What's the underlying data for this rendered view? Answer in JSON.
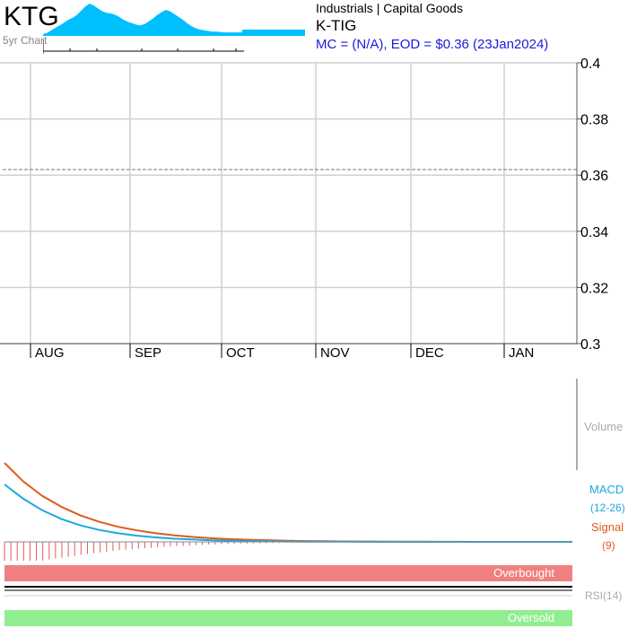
{
  "header": {
    "ticker": "KTG",
    "subchart_label": "5yr Chart",
    "sector": "Industrials | Capital Goods",
    "company_name": "K-TIG",
    "market_info": "MC = (N/A), EOD = $0.36 (23Jan2024)"
  },
  "indicators": {
    "volume_label": "Volume",
    "macd_label": "MACD",
    "macd_params": "(12-26)",
    "signal_label": "Signal",
    "signal_params": "(9)",
    "rsi_label": "RSI(14)",
    "overbought_label": "Overbought",
    "oversold_label": "Oversold"
  },
  "colors": {
    "macd": "#1aa8e0",
    "signal": "#e05a1a",
    "overbought": "#f08080",
    "oversold": "#90ee90",
    "mini_area": "#00bfff"
  },
  "chart_data": [
    {
      "type": "line",
      "name": "price",
      "y_ticks": [
        "0.4",
        "0.38",
        "0.36",
        "0.34",
        "0.32",
        "0.3"
      ],
      "ylim": [
        0.3,
        0.4
      ],
      "x_ticks": [
        "AUG",
        "SEP",
        "OCT",
        "NOV",
        "DEC",
        "JAN"
      ],
      "reference_line": 0.362,
      "grid": true
    },
    {
      "type": "area",
      "name": "5yr-mini",
      "values": [
        0.5,
        0.9,
        1.6,
        2.4,
        3.0,
        3.8,
        4.6,
        5.2,
        6.0,
        7.2,
        8.4,
        9.2,
        8.6,
        7.8,
        7.0,
        6.6,
        6.4,
        6.0,
        5.4,
        4.6,
        4.0,
        3.6,
        3.2,
        3.0,
        3.4,
        4.2,
        5.0,
        6.0,
        6.8,
        7.4,
        7.0,
        6.2,
        5.4,
        4.6,
        3.6,
        2.8,
        2.2,
        1.8,
        1.6,
        1.4,
        1.2,
        1.2,
        1.1,
        1.0,
        1.0,
        1.0,
        1.0,
        1.0
      ]
    },
    {
      "type": "line",
      "name": "macd",
      "series": [
        {
          "name": "MACD",
          "values": [
            40,
            30,
            22,
            16,
            11.5,
            8.3,
            6,
            4.3,
            3.1,
            2.2,
            1.6,
            1.1,
            0.8,
            0.55,
            0.4,
            0.28,
            0.2,
            0.14,
            0.1,
            0.07,
            0.05,
            0.03,
            0.02,
            0.01,
            0,
            0,
            0,
            0,
            0,
            0,
            0
          ]
        },
        {
          "name": "Signal",
          "values": [
            55,
            42,
            32,
            24.5,
            18.5,
            14,
            10.5,
            8,
            6,
            4.5,
            3.4,
            2.5,
            1.9,
            1.4,
            1.05,
            0.78,
            0.58,
            0.43,
            0.32,
            0.24,
            0.18,
            0.13,
            0.1,
            0.07,
            0.05,
            0.03,
            0.02,
            0.01,
            0,
            0,
            0
          ]
        }
      ]
    }
  ]
}
